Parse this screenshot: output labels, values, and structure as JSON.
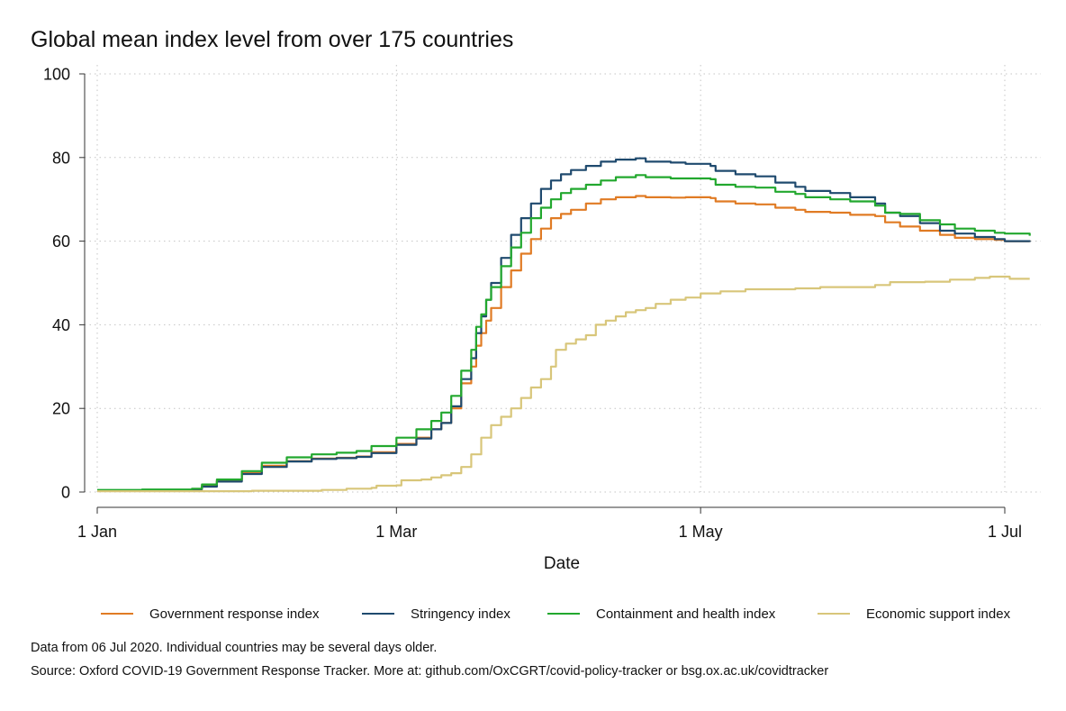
{
  "colors": {
    "government_response": "#e07b24",
    "stringency": "#1f4a6e",
    "containment_health": "#22a82e",
    "economic_support": "#d8c67a"
  },
  "notes": {
    "data_date": "Data from 06 Jul 2020. Individual countries may be several days older.",
    "source": "Source: Oxford COVID-19 Government Response Tracker. More at: github.com/OxCGRT/covid-policy-tracker or bsg.ox.ac.uk/covidtracker"
  },
  "chart_data": {
    "type": "line",
    "title": "Global mean index level from over 175 countries",
    "xlabel": "Date",
    "ylabel": "",
    "xlim": [
      "2020-01-01",
      "2020-07-06"
    ],
    "ylim": [
      0,
      100
    ],
    "x_ticks": [
      "2020-01-01",
      "2020-03-01",
      "2020-05-01",
      "2020-07-01"
    ],
    "x_tick_labels": [
      "1 Jan",
      "1 Mar",
      "1 May",
      "1 Jul"
    ],
    "y_ticks": [
      0,
      20,
      40,
      60,
      80,
      100
    ],
    "y_tick_labels": [
      "0",
      "20",
      "40",
      "60",
      "80",
      "100"
    ],
    "grid": true,
    "legend_position": "bottom",
    "series": [
      {
        "name": "Government response index",
        "color_key": "government_response",
        "points": [
          [
            "2020-01-01",
            0.4
          ],
          [
            "2020-01-10",
            0.5
          ],
          [
            "2020-01-20",
            0.7
          ],
          [
            "2020-01-22",
            1.5
          ],
          [
            "2020-01-25",
            2.7
          ],
          [
            "2020-01-30",
            4.5
          ],
          [
            "2020-02-03",
            6.3
          ],
          [
            "2020-02-08",
            7.4
          ],
          [
            "2020-02-13",
            8.0
          ],
          [
            "2020-02-18",
            8.2
          ],
          [
            "2020-02-22",
            8.5
          ],
          [
            "2020-02-25",
            9.5
          ],
          [
            "2020-03-01",
            11.5
          ],
          [
            "2020-03-05",
            13.0
          ],
          [
            "2020-03-08",
            15.0
          ],
          [
            "2020-03-10",
            16.5
          ],
          [
            "2020-03-12",
            20.0
          ],
          [
            "2020-03-14",
            26.0
          ],
          [
            "2020-03-16",
            30.0
          ],
          [
            "2020-03-17",
            35.0
          ],
          [
            "2020-03-18",
            38.0
          ],
          [
            "2020-03-19",
            41.0
          ],
          [
            "2020-03-20",
            44.0
          ],
          [
            "2020-03-22",
            49.0
          ],
          [
            "2020-03-24",
            53.0
          ],
          [
            "2020-03-26",
            57.0
          ],
          [
            "2020-03-28",
            60.5
          ],
          [
            "2020-03-30",
            63.0
          ],
          [
            "2020-04-01",
            65.5
          ],
          [
            "2020-04-03",
            66.5
          ],
          [
            "2020-04-05",
            67.5
          ],
          [
            "2020-04-08",
            69.0
          ],
          [
            "2020-04-11",
            70.0
          ],
          [
            "2020-04-14",
            70.5
          ],
          [
            "2020-04-18",
            70.8
          ],
          [
            "2020-04-20",
            70.5
          ],
          [
            "2020-04-25",
            70.4
          ],
          [
            "2020-04-28",
            70.5
          ],
          [
            "2020-05-03",
            70.3
          ],
          [
            "2020-05-04",
            69.5
          ],
          [
            "2020-05-08",
            69.0
          ],
          [
            "2020-05-12",
            68.8
          ],
          [
            "2020-05-16",
            68.0
          ],
          [
            "2020-05-20",
            67.5
          ],
          [
            "2020-05-22",
            67.0
          ],
          [
            "2020-05-27",
            66.8
          ],
          [
            "2020-05-31",
            66.3
          ],
          [
            "2020-06-05",
            66.0
          ],
          [
            "2020-06-07",
            64.5
          ],
          [
            "2020-06-10",
            63.5
          ],
          [
            "2020-06-14",
            62.5
          ],
          [
            "2020-06-18",
            61.5
          ],
          [
            "2020-06-21",
            60.8
          ],
          [
            "2020-06-25",
            60.5
          ],
          [
            "2020-06-29",
            60.3
          ],
          [
            "2020-07-01",
            60.0
          ],
          [
            "2020-07-06",
            59.8
          ]
        ]
      },
      {
        "name": "Stringency index",
        "color_key": "stringency",
        "points": [
          [
            "2020-01-01",
            0.4
          ],
          [
            "2020-01-10",
            0.5
          ],
          [
            "2020-01-20",
            0.7
          ],
          [
            "2020-01-22",
            1.3
          ],
          [
            "2020-01-25",
            2.5
          ],
          [
            "2020-01-30",
            4.3
          ],
          [
            "2020-02-03",
            6.0
          ],
          [
            "2020-02-08",
            7.3
          ],
          [
            "2020-02-13",
            7.9
          ],
          [
            "2020-02-18",
            8.1
          ],
          [
            "2020-02-22",
            8.4
          ],
          [
            "2020-02-25",
            9.3
          ],
          [
            "2020-03-01",
            11.3
          ],
          [
            "2020-03-05",
            12.8
          ],
          [
            "2020-03-08",
            15.0
          ],
          [
            "2020-03-10",
            16.5
          ],
          [
            "2020-03-12",
            20.5
          ],
          [
            "2020-03-14",
            27.0
          ],
          [
            "2020-03-16",
            32.0
          ],
          [
            "2020-03-17",
            38.0
          ],
          [
            "2020-03-18",
            42.0
          ],
          [
            "2020-03-19",
            46.0
          ],
          [
            "2020-03-20",
            50.0
          ],
          [
            "2020-03-22",
            56.0
          ],
          [
            "2020-03-24",
            61.5
          ],
          [
            "2020-03-26",
            65.5
          ],
          [
            "2020-03-28",
            69.0
          ],
          [
            "2020-03-30",
            72.5
          ],
          [
            "2020-04-01",
            74.5
          ],
          [
            "2020-04-03",
            76.0
          ],
          [
            "2020-04-05",
            77.0
          ],
          [
            "2020-04-08",
            78.0
          ],
          [
            "2020-04-11",
            79.0
          ],
          [
            "2020-04-14",
            79.5
          ],
          [
            "2020-04-18",
            79.8
          ],
          [
            "2020-04-20",
            79.0
          ],
          [
            "2020-04-25",
            78.8
          ],
          [
            "2020-04-28",
            78.5
          ],
          [
            "2020-05-03",
            78.0
          ],
          [
            "2020-05-04",
            76.8
          ],
          [
            "2020-05-08",
            76.0
          ],
          [
            "2020-05-12",
            75.5
          ],
          [
            "2020-05-16",
            74.0
          ],
          [
            "2020-05-20",
            73.0
          ],
          [
            "2020-05-22",
            72.0
          ],
          [
            "2020-05-27",
            71.5
          ],
          [
            "2020-05-31",
            70.5
          ],
          [
            "2020-06-05",
            69.0
          ],
          [
            "2020-06-07",
            66.8
          ],
          [
            "2020-06-10",
            66.0
          ],
          [
            "2020-06-14",
            64.3
          ],
          [
            "2020-06-18",
            62.5
          ],
          [
            "2020-06-21",
            61.8
          ],
          [
            "2020-06-25",
            61.0
          ],
          [
            "2020-06-29",
            60.5
          ],
          [
            "2020-07-01",
            60.0
          ],
          [
            "2020-07-06",
            59.8
          ]
        ]
      },
      {
        "name": "Containment and health index",
        "color_key": "containment_health",
        "points": [
          [
            "2020-01-01",
            0.5
          ],
          [
            "2020-01-10",
            0.6
          ],
          [
            "2020-01-20",
            0.8
          ],
          [
            "2020-01-22",
            1.8
          ],
          [
            "2020-01-25",
            3.0
          ],
          [
            "2020-01-30",
            5.0
          ],
          [
            "2020-02-03",
            7.0
          ],
          [
            "2020-02-08",
            8.3
          ],
          [
            "2020-02-13",
            9.0
          ],
          [
            "2020-02-18",
            9.4
          ],
          [
            "2020-02-22",
            9.8
          ],
          [
            "2020-02-25",
            11.0
          ],
          [
            "2020-03-01",
            13.0
          ],
          [
            "2020-03-05",
            15.0
          ],
          [
            "2020-03-08",
            17.0
          ],
          [
            "2020-03-10",
            19.0
          ],
          [
            "2020-03-12",
            23.0
          ],
          [
            "2020-03-14",
            29.0
          ],
          [
            "2020-03-16",
            34.0
          ],
          [
            "2020-03-17",
            39.5
          ],
          [
            "2020-03-18",
            42.5
          ],
          [
            "2020-03-19",
            46.0
          ],
          [
            "2020-03-20",
            49.0
          ],
          [
            "2020-03-22",
            54.0
          ],
          [
            "2020-03-24",
            58.5
          ],
          [
            "2020-03-26",
            62.0
          ],
          [
            "2020-03-28",
            65.5
          ],
          [
            "2020-03-30",
            68.0
          ],
          [
            "2020-04-01",
            70.0
          ],
          [
            "2020-04-03",
            71.5
          ],
          [
            "2020-04-05",
            72.5
          ],
          [
            "2020-04-08",
            73.5
          ],
          [
            "2020-04-11",
            74.5
          ],
          [
            "2020-04-14",
            75.3
          ],
          [
            "2020-04-18",
            75.8
          ],
          [
            "2020-04-20",
            75.3
          ],
          [
            "2020-04-25",
            75.0
          ],
          [
            "2020-04-28",
            75.0
          ],
          [
            "2020-05-03",
            74.8
          ],
          [
            "2020-05-04",
            73.5
          ],
          [
            "2020-05-08",
            73.0
          ],
          [
            "2020-05-12",
            72.8
          ],
          [
            "2020-05-16",
            71.8
          ],
          [
            "2020-05-20",
            71.3
          ],
          [
            "2020-05-22",
            70.5
          ],
          [
            "2020-05-27",
            70.0
          ],
          [
            "2020-05-31",
            69.5
          ],
          [
            "2020-06-05",
            68.5
          ],
          [
            "2020-06-07",
            66.8
          ],
          [
            "2020-06-10",
            66.5
          ],
          [
            "2020-06-14",
            65.0
          ],
          [
            "2020-06-18",
            64.0
          ],
          [
            "2020-06-21",
            63.0
          ],
          [
            "2020-06-25",
            62.5
          ],
          [
            "2020-06-29",
            62.0
          ],
          [
            "2020-07-01",
            61.8
          ],
          [
            "2020-07-06",
            61.3
          ]
        ]
      },
      {
        "name": "Economic support index",
        "color_key": "economic_support",
        "points": [
          [
            "2020-01-01",
            0.2
          ],
          [
            "2020-01-20",
            0.2
          ],
          [
            "2020-02-01",
            0.3
          ],
          [
            "2020-02-15",
            0.5
          ],
          [
            "2020-02-20",
            0.8
          ],
          [
            "2020-02-25",
            1.0
          ],
          [
            "2020-02-26",
            1.5
          ],
          [
            "2020-03-01",
            1.6
          ],
          [
            "2020-03-02",
            2.8
          ],
          [
            "2020-03-06",
            3.0
          ],
          [
            "2020-03-08",
            3.5
          ],
          [
            "2020-03-10",
            4.0
          ],
          [
            "2020-03-12",
            4.5
          ],
          [
            "2020-03-14",
            6.0
          ],
          [
            "2020-03-16",
            9.0
          ],
          [
            "2020-03-18",
            13.0
          ],
          [
            "2020-03-20",
            16.0
          ],
          [
            "2020-03-22",
            18.0
          ],
          [
            "2020-03-24",
            20.0
          ],
          [
            "2020-03-26",
            22.5
          ],
          [
            "2020-03-28",
            25.0
          ],
          [
            "2020-03-30",
            27.0
          ],
          [
            "2020-04-01",
            30.0
          ],
          [
            "2020-04-02",
            34.0
          ],
          [
            "2020-04-04",
            35.5
          ],
          [
            "2020-04-06",
            36.5
          ],
          [
            "2020-04-08",
            37.5
          ],
          [
            "2020-04-10",
            40.0
          ],
          [
            "2020-04-12",
            41.0
          ],
          [
            "2020-04-14",
            42.0
          ],
          [
            "2020-04-16",
            43.0
          ],
          [
            "2020-04-18",
            43.5
          ],
          [
            "2020-04-20",
            44.0
          ],
          [
            "2020-04-22",
            45.0
          ],
          [
            "2020-04-25",
            46.0
          ],
          [
            "2020-04-28",
            46.5
          ],
          [
            "2020-05-01",
            47.5
          ],
          [
            "2020-05-05",
            48.0
          ],
          [
            "2020-05-10",
            48.5
          ],
          [
            "2020-05-15",
            48.5
          ],
          [
            "2020-05-20",
            48.7
          ],
          [
            "2020-05-25",
            49.0
          ],
          [
            "2020-05-31",
            49.0
          ],
          [
            "2020-06-05",
            49.5
          ],
          [
            "2020-06-08",
            50.2
          ],
          [
            "2020-06-15",
            50.3
          ],
          [
            "2020-06-20",
            50.8
          ],
          [
            "2020-06-25",
            51.2
          ],
          [
            "2020-06-28",
            51.5
          ],
          [
            "2020-07-01",
            51.5
          ],
          [
            "2020-07-02",
            51.0
          ],
          [
            "2020-07-06",
            51.0
          ]
        ]
      }
    ]
  }
}
